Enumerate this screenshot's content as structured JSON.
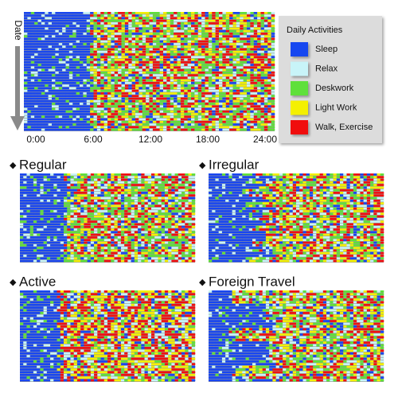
{
  "axis": {
    "label": "Date",
    "ticks": [
      "0:00",
      "6:00",
      "12:00",
      "18:00",
      "24:00"
    ]
  },
  "legend": {
    "title": "Daily Activities",
    "items": [
      {
        "label": "Sleep",
        "color": "#1846f0"
      },
      {
        "label": "Relax",
        "color": "#c8f4f8"
      },
      {
        "label": "Deskwork",
        "color": "#5ee03a"
      },
      {
        "label": "Light Work",
        "color": "#f4f000"
      },
      {
        "label": "Walk, Exercise",
        "color": "#f01010"
      }
    ]
  },
  "panels": [
    {
      "title": "Regular"
    },
    {
      "title": "Irregular"
    },
    {
      "title": "Active"
    },
    {
      "title": "Foreign Travel"
    }
  ]
}
